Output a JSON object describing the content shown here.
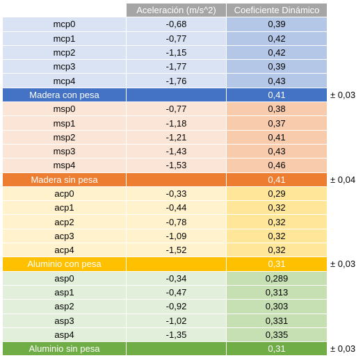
{
  "header": {
    "col1": "",
    "col2": "Aceleración (m/s^2)",
    "col3": "Coeficiente Dinámico"
  },
  "groups": [
    {
      "rows": [
        {
          "name": "mcp0",
          "accel": "-0,68",
          "coef": "0,39"
        },
        {
          "name": "mcp1",
          "accel": "-0,77",
          "coef": "0,42"
        },
        {
          "name": "mcp2",
          "accel": "-1,15",
          "coef": "0,42"
        },
        {
          "name": "mcp3",
          "accel": "-1,77",
          "coef": "0,39"
        },
        {
          "name": "mcp4",
          "accel": "-1,76",
          "coef": "0,43"
        }
      ],
      "summary": {
        "label": "Madera con pesa",
        "coef": "0,41",
        "error": "± 0,03"
      },
      "colors": {
        "light": "#dae3f3",
        "mid": "#b4c7e7",
        "summary": "#4472c4"
      }
    },
    {
      "rows": [
        {
          "name": "msp0",
          "accel": "-0,77",
          "coef": "0,38"
        },
        {
          "name": "msp1",
          "accel": "-1,18",
          "coef": "0,37"
        },
        {
          "name": "msp2",
          "accel": "-1,21",
          "coef": "0,41"
        },
        {
          "name": "msp3",
          "accel": "-1,43",
          "coef": "0,43"
        },
        {
          "name": "msp4",
          "accel": "-1,53",
          "coef": "0,46"
        }
      ],
      "summary": {
        "label": "Madera sin pesa",
        "coef": "0,41",
        "error": "± 0,04"
      },
      "colors": {
        "light": "#fbe5d6",
        "mid": "#f8cbad",
        "summary": "#ed7d31"
      }
    },
    {
      "rows": [
        {
          "name": "acp0",
          "accel": "-0,33",
          "coef": "0,29"
        },
        {
          "name": "acp1",
          "accel": "-0,44",
          "coef": "0,32"
        },
        {
          "name": "acp2",
          "accel": "-0,78",
          "coef": "0,32"
        },
        {
          "name": "acp3",
          "accel": "-1,09",
          "coef": "0,32"
        },
        {
          "name": "acp4",
          "accel": "-1,52",
          "coef": "0,32"
        }
      ],
      "summary": {
        "label": "Aluminio con pesa",
        "coef": "0,31",
        "error": "± 0,03"
      },
      "colors": {
        "light": "#fff2cc",
        "mid": "#ffe699",
        "summary": "#ffc000"
      }
    },
    {
      "rows": [
        {
          "name": "asp0",
          "accel": "-0,34",
          "coef": "0,289"
        },
        {
          "name": "asp1",
          "accel": "-0,47",
          "coef": "0,313"
        },
        {
          "name": "asp2",
          "accel": "-0,92",
          "coef": "0,303"
        },
        {
          "name": "asp3",
          "accel": "-1,02",
          "coef": "0,331"
        },
        {
          "name": "asp4",
          "accel": "-1,35",
          "coef": "0,335"
        }
      ],
      "summary": {
        "label": "Aluminio sin pesa",
        "coef": "0,31",
        "error": "± 0,03"
      },
      "colors": {
        "light": "#e2efda",
        "mid": "#c6e0b4",
        "summary": "#70ad47"
      }
    }
  ]
}
